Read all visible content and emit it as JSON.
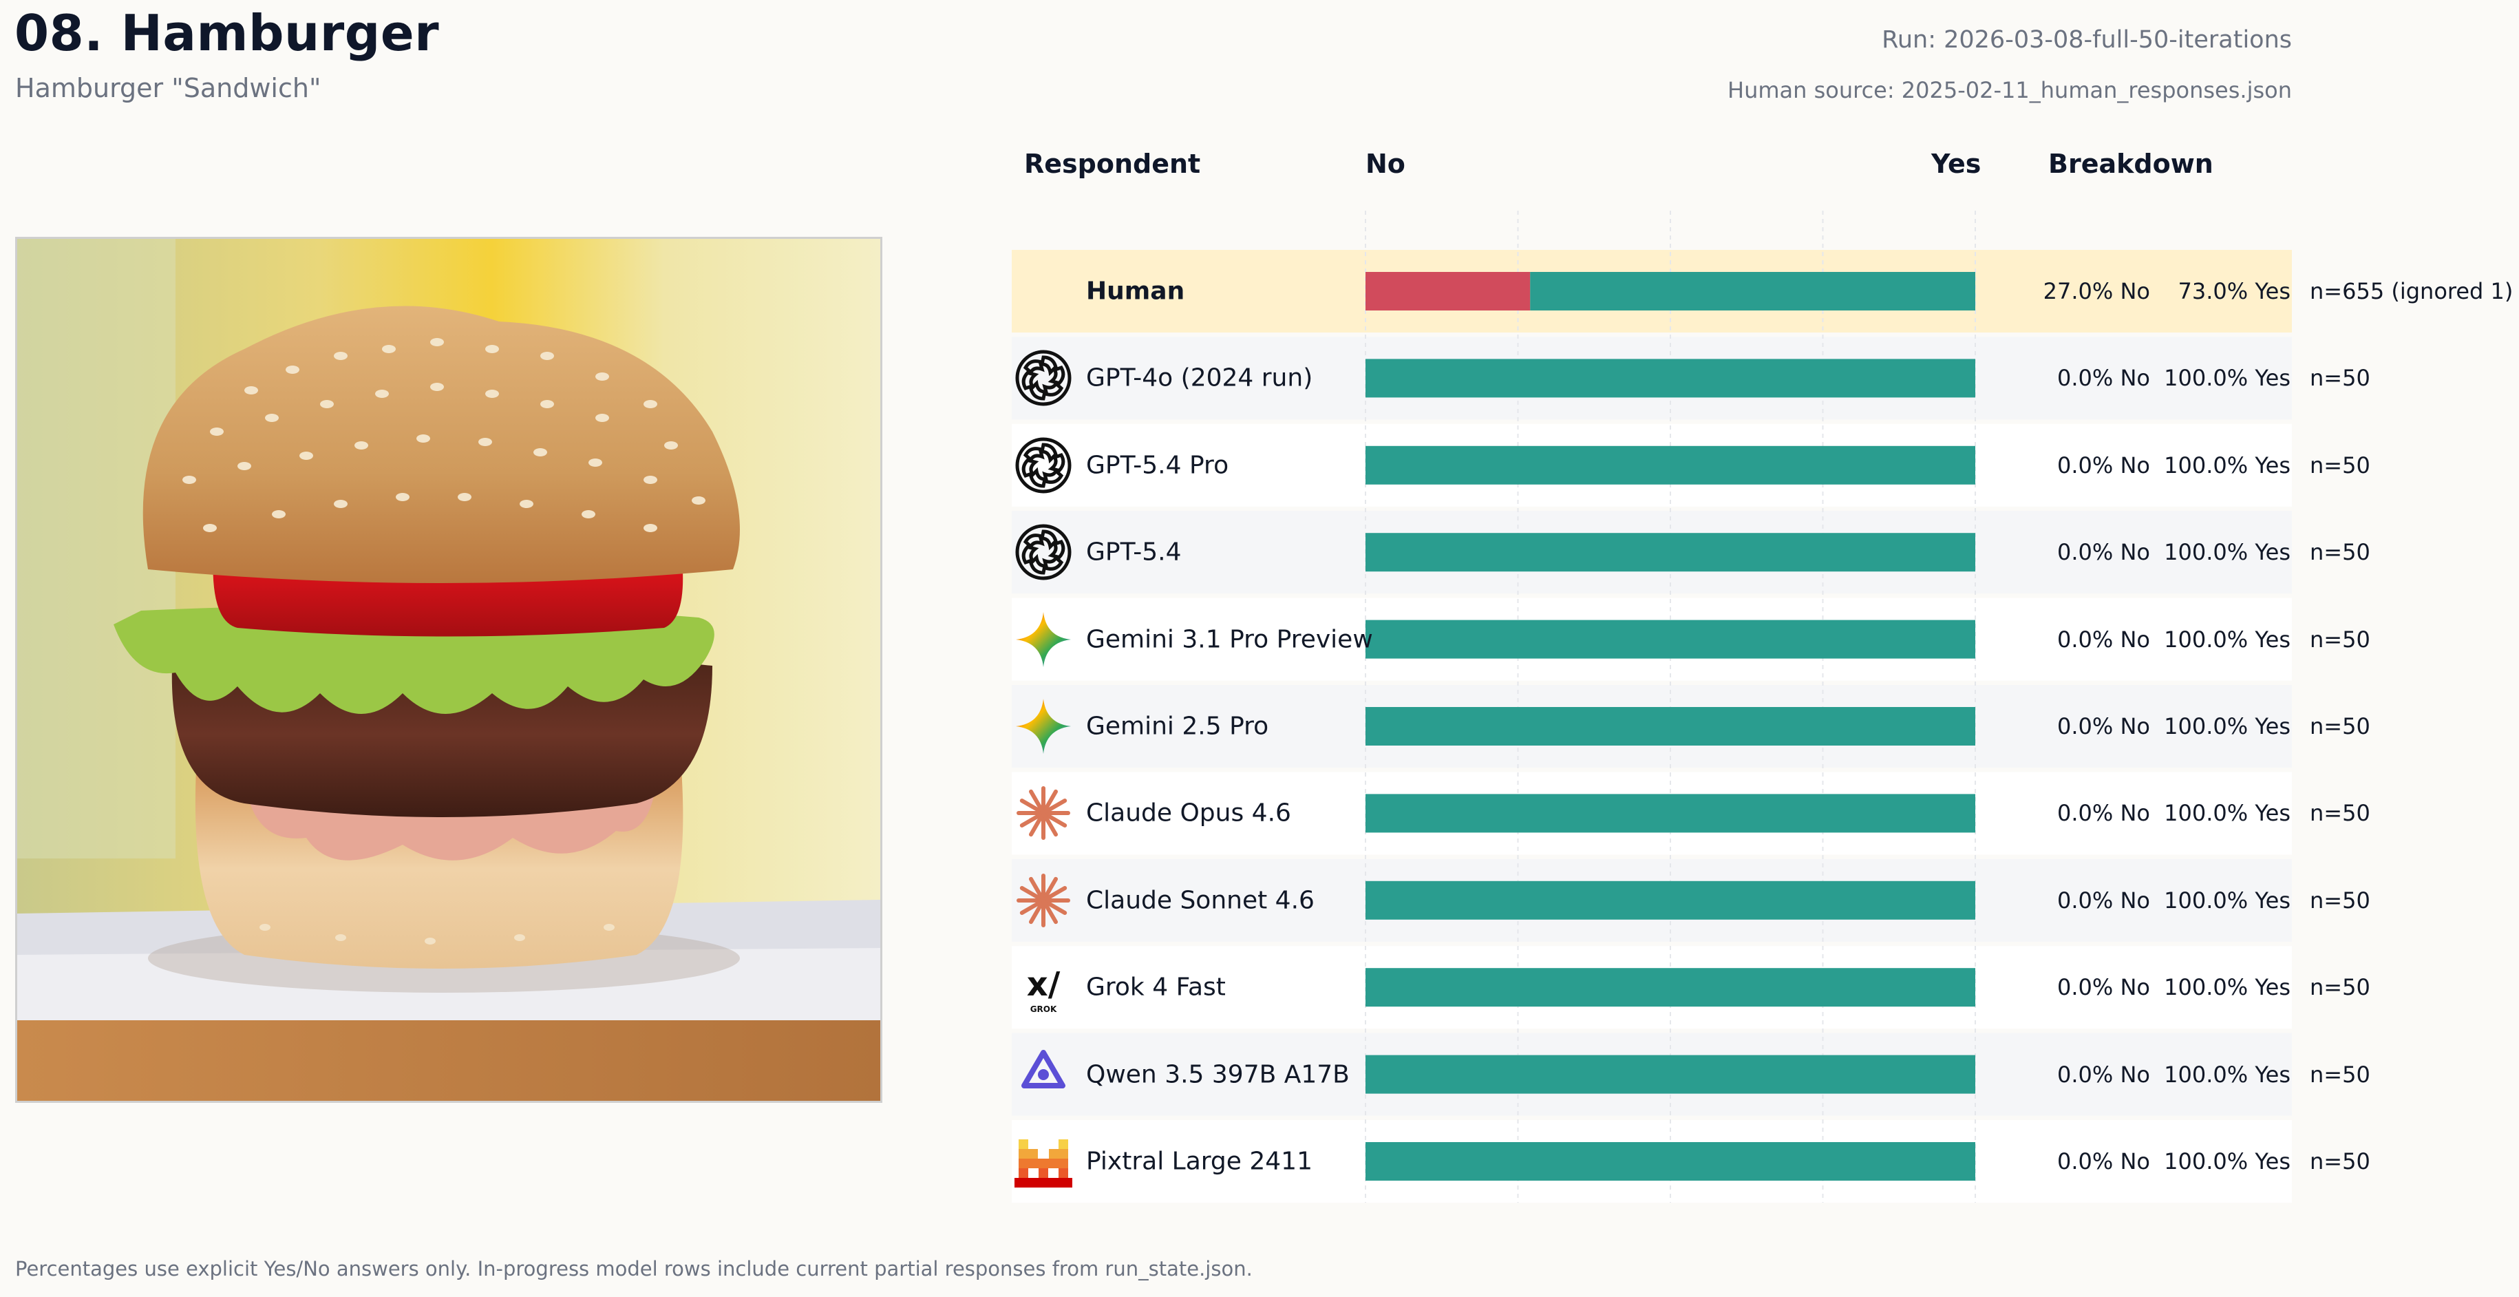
{
  "header": {
    "title": "08. Hamburger",
    "subtitle": "Hamburger \"Sandwich\"",
    "run": "Run: 2026-03-08-full-50-iterations",
    "human_source": "Human source: 2025-02-11_human_responses.json"
  },
  "columns": {
    "respondent": "Respondent",
    "no": "No",
    "yes": "Yes",
    "breakdown": "Breakdown"
  },
  "colors": {
    "no": "#d14b5c",
    "yes": "#2a9d8f",
    "human_highlight": "#fff1cc",
    "row_alt": "#f5f6f8",
    "row": "#ffffff"
  },
  "chart_data": {
    "type": "bar",
    "orientation": "horizontal-stacked-100",
    "xlabel_left": "No",
    "xlabel_right": "Yes",
    "series": [
      {
        "name": "No",
        "color": "#d14b5c"
      },
      {
        "name": "Yes",
        "color": "#2a9d8f"
      }
    ],
    "rows": [
      {
        "label": "Human",
        "icon": "human",
        "no": 27.0,
        "yes": 73.0,
        "no_text": "27.0% No",
        "yes_text": "73.0% Yes",
        "n_text": "n=655 (ignored 1)",
        "highlight": true
      },
      {
        "label": "GPT-4o (2024 run)",
        "icon": "openai-icon",
        "no": 0.0,
        "yes": 100.0,
        "no_text": "0.0% No",
        "yes_text": "100.0% Yes",
        "n_text": "n=50"
      },
      {
        "label": "GPT-5.4 Pro",
        "icon": "openai-icon",
        "no": 0.0,
        "yes": 100.0,
        "no_text": "0.0% No",
        "yes_text": "100.0% Yes",
        "n_text": "n=50"
      },
      {
        "label": "GPT-5.4",
        "icon": "openai-icon",
        "no": 0.0,
        "yes": 100.0,
        "no_text": "0.0% No",
        "yes_text": "100.0% Yes",
        "n_text": "n=50"
      },
      {
        "label": "Gemini 3.1 Pro Preview",
        "icon": "gemini-icon",
        "no": 0.0,
        "yes": 100.0,
        "no_text": "0.0% No",
        "yes_text": "100.0% Yes",
        "n_text": "n=50"
      },
      {
        "label": "Gemini 2.5 Pro",
        "icon": "gemini-icon",
        "no": 0.0,
        "yes": 100.0,
        "no_text": "0.0% No",
        "yes_text": "100.0% Yes",
        "n_text": "n=50"
      },
      {
        "label": "Claude Opus 4.6",
        "icon": "claude-icon",
        "no": 0.0,
        "yes": 100.0,
        "no_text": "0.0% No",
        "yes_text": "100.0% Yes",
        "n_text": "n=50"
      },
      {
        "label": "Claude Sonnet 4.6",
        "icon": "claude-icon",
        "no": 0.0,
        "yes": 100.0,
        "no_text": "0.0% No",
        "yes_text": "100.0% Yes",
        "n_text": "n=50"
      },
      {
        "label": "Grok 4 Fast",
        "icon": "grok-icon",
        "no": 0.0,
        "yes": 100.0,
        "no_text": "0.0% No",
        "yes_text": "100.0% Yes",
        "n_text": "n=50"
      },
      {
        "label": "Qwen 3.5 397B A17B",
        "icon": "qwen-icon",
        "no": 0.0,
        "yes": 100.0,
        "no_text": "0.0% No",
        "yes_text": "100.0% Yes",
        "n_text": "n=50"
      },
      {
        "label": "Pixtral Large 2411",
        "icon": "mistral-icon",
        "no": 0.0,
        "yes": 100.0,
        "no_text": "0.0% No",
        "yes_text": "100.0% Yes",
        "n_text": "n=50"
      }
    ],
    "xlim": [
      0,
      100
    ],
    "gridlines": true,
    "grok_logo_text": "GROK"
  },
  "footer": "Percentages use explicit Yes/No answers only. In-progress model rows include current partial responses from run_state.json."
}
